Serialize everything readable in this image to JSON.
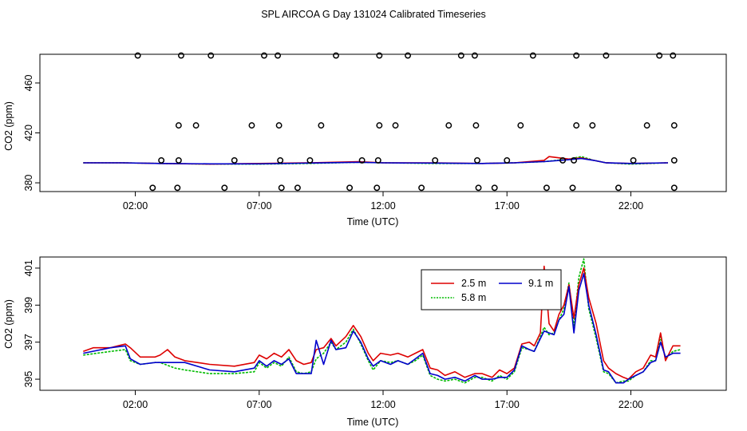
{
  "figure_title": "SPL AIRCOA G  Day 131024  Calibrated Timeseries",
  "chart_data": [
    {
      "type": "line",
      "panel": "top",
      "xlabel": "Time (UTC)",
      "ylabel": "CO2 (ppm)",
      "xlim": [
        -1.85,
        25.85
      ],
      "ylim": [
        373,
        483
      ],
      "x_ticks": [
        {
          "v": 2,
          "label": "02:00"
        },
        {
          "v": 7,
          "label": "07:00"
        },
        {
          "v": 12,
          "label": "12:00"
        },
        {
          "v": 17,
          "label": "17:00"
        },
        {
          "v": 22,
          "label": "22:00"
        }
      ],
      "y_ticks": [
        {
          "v": 380,
          "label": "380"
        },
        {
          "v": 420,
          "label": "420"
        },
        {
          "v": 460,
          "label": "460"
        }
      ],
      "series": [
        {
          "name": "2.5 m",
          "color": "#dd0000",
          "x": [
            -0.1,
            1.5,
            3,
            5,
            7,
            9,
            11,
            12,
            14,
            16,
            17.3,
            18.5,
            18.7,
            19.5,
            20,
            20.5,
            21,
            22,
            23.5
          ],
          "y": [
            396,
            396,
            395.5,
            395,
            395.5,
            396,
            397,
            396,
            396,
            395.5,
            396,
            398,
            401,
            399,
            400,
            398,
            396,
            395.5,
            396
          ]
        },
        {
          "name": "5.8 m",
          "color": "#00bb00",
          "x": [
            -0.1,
            1.5,
            3,
            5,
            7,
            9,
            11,
            12,
            14,
            16,
            17.3,
            18.5,
            19.5,
            20,
            20.5,
            21,
            22,
            23.5
          ],
          "y": [
            396,
            396,
            395.5,
            395,
            395,
            395.5,
            396.5,
            396,
            395.5,
            395.5,
            396,
            397,
            399,
            401,
            398,
            396,
            395,
            396
          ]
        },
        {
          "name": "9.1 m",
          "color": "#0000cc",
          "x": [
            -0.1,
            1.5,
            3,
            5,
            7,
            9,
            11,
            12,
            14,
            16,
            17.3,
            18.5,
            19.5,
            20,
            20.5,
            21,
            22,
            23.5
          ],
          "y": [
            396,
            396,
            395.5,
            395.2,
            395.2,
            395.8,
            396.5,
            396,
            395.8,
            395.5,
            396,
            397,
            398.5,
            399.5,
            398,
            396,
            395.5,
            396
          ]
        }
      ],
      "points": [
        {
          "x": 2.1,
          "y": 482
        },
        {
          "x": 3.85,
          "y": 482
        },
        {
          "x": 5.05,
          "y": 482
        },
        {
          "x": 7.2,
          "y": 482
        },
        {
          "x": 7.75,
          "y": 482
        },
        {
          "x": 10.1,
          "y": 482
        },
        {
          "x": 11.85,
          "y": 482
        },
        {
          "x": 13.0,
          "y": 482
        },
        {
          "x": 15.15,
          "y": 482
        },
        {
          "x": 15.7,
          "y": 482
        },
        {
          "x": 18.05,
          "y": 482
        },
        {
          "x": 19.8,
          "y": 482
        },
        {
          "x": 21.0,
          "y": 482
        },
        {
          "x": 23.15,
          "y": 482
        },
        {
          "x": 23.7,
          "y": 482
        },
        {
          "x": 3.75,
          "y": 426
        },
        {
          "x": 4.45,
          "y": 426
        },
        {
          "x": 6.7,
          "y": 426
        },
        {
          "x": 7.8,
          "y": 426
        },
        {
          "x": 9.5,
          "y": 426
        },
        {
          "x": 11.85,
          "y": 426
        },
        {
          "x": 12.5,
          "y": 426
        },
        {
          "x": 14.65,
          "y": 426
        },
        {
          "x": 15.75,
          "y": 426
        },
        {
          "x": 17.55,
          "y": 426
        },
        {
          "x": 19.8,
          "y": 426
        },
        {
          "x": 20.45,
          "y": 426
        },
        {
          "x": 22.65,
          "y": 426
        },
        {
          "x": 23.75,
          "y": 426
        },
        {
          "x": 3.05,
          "y": 398
        },
        {
          "x": 3.75,
          "y": 398
        },
        {
          "x": 6.0,
          "y": 398
        },
        {
          "x": 7.85,
          "y": 398
        },
        {
          "x": 9.05,
          "y": 398
        },
        {
          "x": 11.15,
          "y": 398
        },
        {
          "x": 11.8,
          "y": 398
        },
        {
          "x": 14.1,
          "y": 398
        },
        {
          "x": 15.8,
          "y": 398
        },
        {
          "x": 17.0,
          "y": 398
        },
        {
          "x": 19.25,
          "y": 398
        },
        {
          "x": 19.7,
          "y": 398
        },
        {
          "x": 22.1,
          "y": 398
        },
        {
          "x": 23.75,
          "y": 398
        },
        {
          "x": 2.7,
          "y": 376
        },
        {
          "x": 3.7,
          "y": 376
        },
        {
          "x": 5.6,
          "y": 376
        },
        {
          "x": 7.9,
          "y": 376
        },
        {
          "x": 8.55,
          "y": 376
        },
        {
          "x": 10.65,
          "y": 376
        },
        {
          "x": 11.75,
          "y": 376
        },
        {
          "x": 13.55,
          "y": 376
        },
        {
          "x": 15.85,
          "y": 376
        },
        {
          "x": 16.5,
          "y": 376
        },
        {
          "x": 18.6,
          "y": 376
        },
        {
          "x": 19.65,
          "y": 376
        },
        {
          "x": 21.5,
          "y": 376
        },
        {
          "x": 23.75,
          "y": 376
        }
      ]
    },
    {
      "type": "line",
      "panel": "bottom",
      "xlabel": "Time (UTC)",
      "ylabel": "CO2 (ppm)",
      "xlim": [
        -1.85,
        25.85
      ],
      "ylim": [
        394.4,
        401.6
      ],
      "x_ticks": [
        {
          "v": 2,
          "label": "02:00"
        },
        {
          "v": 7,
          "label": "07:00"
        },
        {
          "v": 12,
          "label": "12:00"
        },
        {
          "v": 17,
          "label": "17:00"
        },
        {
          "v": 22,
          "label": "22:00"
        }
      ],
      "y_ticks": [
        {
          "v": 395,
          "label": "395"
        },
        {
          "v": 397,
          "label": "397"
        },
        {
          "v": 399,
          "label": "399"
        },
        {
          "v": 401,
          "label": "401"
        }
      ],
      "legend": {
        "position": "top-right",
        "entries": [
          "2.5 m",
          "5.8 m",
          "9.1 m"
        ]
      },
      "series": [
        {
          "name": "2.5 m",
          "color": "#dd0000",
          "x": [
            -0.1,
            0.3,
            1.0,
            1.3,
            1.6,
            1.8,
            2.2,
            2.8,
            3.0,
            3.3,
            3.6,
            4.0,
            5.0,
            6.0,
            6.8,
            7.0,
            7.3,
            7.6,
            7.9,
            8.2,
            8.5,
            8.8,
            9.1,
            9.3,
            9.6,
            9.9,
            10.1,
            10.5,
            10.8,
            11.1,
            11.4,
            11.6,
            11.9,
            12.3,
            12.6,
            13.0,
            13.3,
            13.6,
            13.9,
            14.2,
            14.5,
            14.9,
            15.3,
            15.7,
            16.0,
            16.4,
            16.7,
            17.0,
            17.3,
            17.6,
            17.9,
            18.1,
            18.35,
            18.5,
            18.7,
            18.9,
            19.1,
            19.3,
            19.5,
            19.7,
            19.9,
            20.1,
            20.3,
            20.6,
            20.9,
            21.1,
            21.4,
            21.7,
            21.9,
            22.2,
            22.5,
            22.8,
            23.0,
            23.2,
            23.4,
            23.7,
            24.0
          ],
          "y": [
            396.5,
            396.7,
            396.7,
            396.8,
            396.9,
            396.7,
            396.2,
            396.2,
            396.3,
            396.6,
            396.2,
            396.0,
            395.8,
            395.7,
            395.9,
            396.3,
            396.1,
            396.4,
            396.2,
            396.6,
            396.0,
            395.8,
            395.9,
            396.6,
            396.7,
            397.2,
            396.8,
            397.3,
            397.9,
            397.3,
            396.4,
            396.0,
            396.4,
            396.3,
            396.4,
            396.2,
            396.4,
            396.6,
            395.6,
            395.5,
            395.2,
            395.4,
            395.1,
            395.3,
            395.3,
            395.1,
            395.5,
            395.3,
            395.6,
            396.9,
            397.0,
            396.8,
            397.5,
            401.1,
            398.0,
            397.6,
            398.5,
            399.0,
            400.1,
            398.3,
            400.1,
            401.0,
            399.4,
            398.0,
            396.0,
            395.6,
            395.3,
            395.1,
            395.0,
            395.4,
            395.6,
            396.3,
            396.2,
            397.5,
            396.0,
            396.8,
            396.8
          ]
        },
        {
          "name": "5.8 m",
          "color": "#00bb00",
          "x": [
            -0.1,
            1.0,
            1.6,
            1.8,
            2.2,
            2.8,
            3.0,
            3.6,
            4.0,
            5.0,
            6.0,
            6.8,
            7.0,
            7.3,
            7.6,
            7.9,
            8.2,
            8.5,
            8.8,
            9.1,
            9.3,
            9.6,
            9.9,
            10.1,
            10.5,
            10.8,
            11.1,
            11.4,
            11.6,
            11.9,
            12.3,
            12.6,
            13.0,
            13.3,
            13.6,
            13.9,
            14.2,
            14.5,
            14.9,
            15.3,
            15.7,
            16.0,
            16.4,
            16.7,
            17.0,
            17.3,
            17.6,
            17.9,
            18.1,
            18.35,
            18.5,
            18.7,
            18.9,
            19.1,
            19.3,
            19.5,
            19.7,
            19.9,
            20.1,
            20.3,
            20.6,
            20.9,
            21.1,
            21.4,
            21.7,
            21.9,
            22.2,
            22.5,
            22.8,
            23.0,
            23.2,
            23.4,
            23.7,
            24.0
          ],
          "y": [
            396.3,
            396.5,
            396.6,
            396.0,
            395.8,
            395.9,
            395.9,
            395.6,
            395.5,
            395.3,
            395.3,
            395.4,
            395.9,
            395.6,
            395.9,
            395.7,
            396.2,
            395.4,
            395.3,
            395.4,
            396.1,
            396.4,
            397.0,
            396.6,
            397.0,
            397.7,
            396.9,
            396.0,
            395.5,
            396.0,
            395.9,
            396.0,
            395.8,
            396.0,
            396.3,
            395.2,
            395.0,
            394.9,
            395.0,
            394.8,
            395.1,
            395.1,
            394.9,
            395.2,
            395.0,
            395.4,
            396.7,
            396.6,
            396.5,
            397.3,
            397.8,
            397.4,
            397.5,
            398.2,
            398.8,
            400.2,
            397.9,
            400.5,
            401.5,
            398.8,
            397.2,
            395.4,
            395.3,
            394.8,
            394.9,
            394.9,
            395.2,
            395.4,
            396.0,
            396.0,
            397.3,
            396.1,
            396.5,
            396.6
          ]
        },
        {
          "name": "9.1 m",
          "color": "#0000cc",
          "x": [
            -0.1,
            1.0,
            1.6,
            1.8,
            2.2,
            2.8,
            3.0,
            3.6,
            4.0,
            5.0,
            6.0,
            6.8,
            7.0,
            7.3,
            7.6,
            7.9,
            8.2,
            8.5,
            8.8,
            9.1,
            9.3,
            9.6,
            9.9,
            10.1,
            10.5,
            10.8,
            11.1,
            11.4,
            11.6,
            11.9,
            12.3,
            12.6,
            13.0,
            13.3,
            13.6,
            13.9,
            14.2,
            14.5,
            14.9,
            15.3,
            15.7,
            16.0,
            16.4,
            16.7,
            17.0,
            17.3,
            17.6,
            17.9,
            18.1,
            18.35,
            18.5,
            18.7,
            18.9,
            19.1,
            19.3,
            19.5,
            19.7,
            19.9,
            20.1,
            20.3,
            20.6,
            20.9,
            21.1,
            21.4,
            21.7,
            21.9,
            22.2,
            22.5,
            22.8,
            23.0,
            23.2,
            23.4,
            23.7,
            24.0
          ],
          "y": [
            396.4,
            396.7,
            396.8,
            396.1,
            395.8,
            395.9,
            395.9,
            395.9,
            395.9,
            395.5,
            395.4,
            395.6,
            396.0,
            395.7,
            396.0,
            395.8,
            396.1,
            395.3,
            395.3,
            395.3,
            397.1,
            395.8,
            397.1,
            396.6,
            396.7,
            397.6,
            397.0,
            396.1,
            395.7,
            396.0,
            395.8,
            396.0,
            395.8,
            396.1,
            396.4,
            395.3,
            395.2,
            395.0,
            395.1,
            394.9,
            395.2,
            395.0,
            395.0,
            395.1,
            395.1,
            395.5,
            396.8,
            396.6,
            396.5,
            397.2,
            397.6,
            397.5,
            397.4,
            398.2,
            398.5,
            400.0,
            397.5,
            399.8,
            400.7,
            399.0,
            397.4,
            395.5,
            395.4,
            394.8,
            394.8,
            395.0,
            395.2,
            395.4,
            395.9,
            396.0,
            397.0,
            396.2,
            396.4,
            396.4
          ]
        }
      ]
    }
  ]
}
